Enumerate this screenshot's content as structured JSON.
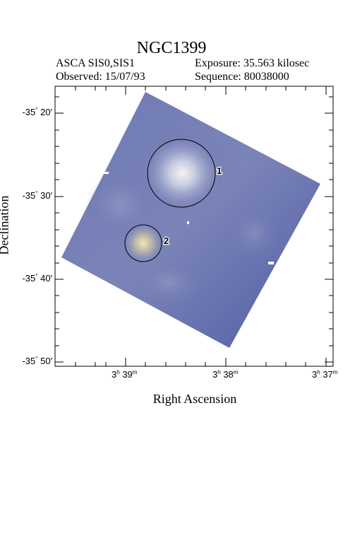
{
  "header": {
    "title": "NGC1399",
    "instrument": "ASCA SIS0,SIS1",
    "exposure": "Exposure: 35.563 kilosec",
    "observed": "Observed: 15/07/93",
    "sequence": "Sequence: 80038000"
  },
  "axes": {
    "x_label": "Right Ascension",
    "y_label": "Declination",
    "y_ticks": [
      {
        "deg": "-35",
        "min": "20"
      },
      {
        "deg": "-35",
        "min": "30"
      },
      {
        "deg": "-35",
        "min": "40"
      },
      {
        "deg": "-35",
        "min": "50"
      }
    ],
    "x_ticks": [
      {
        "h": "3",
        "m": "39"
      },
      {
        "h": "3",
        "m": "38"
      },
      {
        "h": "3",
        "m": "37"
      }
    ]
  },
  "regions": [
    {
      "label": "1"
    },
    {
      "label": "2"
    }
  ],
  "colors": {
    "field": "#5a68a8",
    "field_light": "#8a90b8",
    "source_core": "#f0f0e8",
    "source2_core": "#e8e4b0"
  }
}
